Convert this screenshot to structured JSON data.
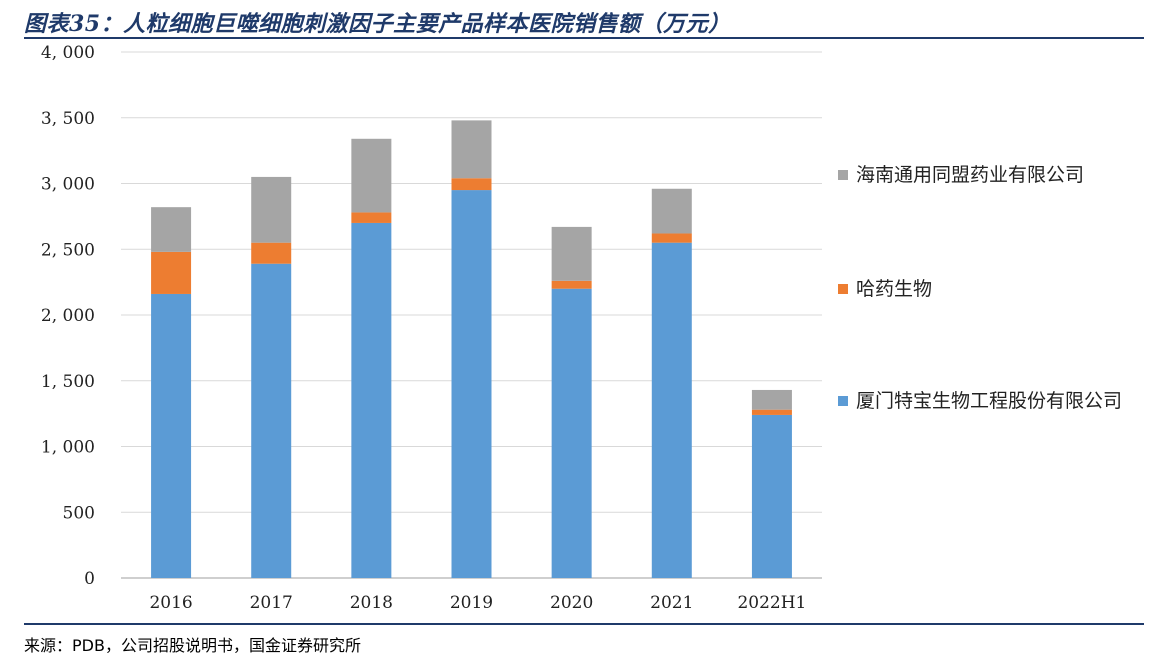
{
  "header": {
    "title": "图表35：人粒细胞巨噬细胞刺激因子主要产品样本医院销售额（万元）"
  },
  "footer": {
    "source": "来源：PDB，公司招股说明书，国金证券研究所"
  },
  "chart_data": {
    "type": "bar",
    "stacked": true,
    "title": "人粒细胞巨噬细胞刺激因子主要产品样本医院销售额（万元）",
    "xlabel": "",
    "ylabel": "",
    "ylim": [
      0,
      4000
    ],
    "yticks": [
      0,
      500,
      1000,
      1500,
      2000,
      2500,
      3000,
      3500,
      4000
    ],
    "ytick_labels": [
      "0",
      "500",
      "1, 000",
      "1, 500",
      "2, 000",
      "2, 500",
      "3, 000",
      "3, 500",
      "4, 000"
    ],
    "grid": true,
    "legend_position": "right",
    "categories": [
      "2016",
      "2017",
      "2018",
      "2019",
      "2020",
      "2021",
      "2022H1"
    ],
    "series": [
      {
        "name": "厦门特宝生物工程股份有限公司",
        "color": "#5b9bd5",
        "values": [
          2160,
          2390,
          2700,
          2950,
          2200,
          2550,
          1240
        ]
      },
      {
        "name": "哈药生物",
        "color": "#ed7d31",
        "values": [
          320,
          160,
          80,
          90,
          60,
          70,
          40
        ]
      },
      {
        "name": "海南通用同盟药业有限公司",
        "color": "#a5a5a5",
        "values": [
          340,
          500,
          560,
          440,
          410,
          340,
          150
        ]
      }
    ],
    "legend_order": [
      2,
      1,
      0
    ]
  }
}
